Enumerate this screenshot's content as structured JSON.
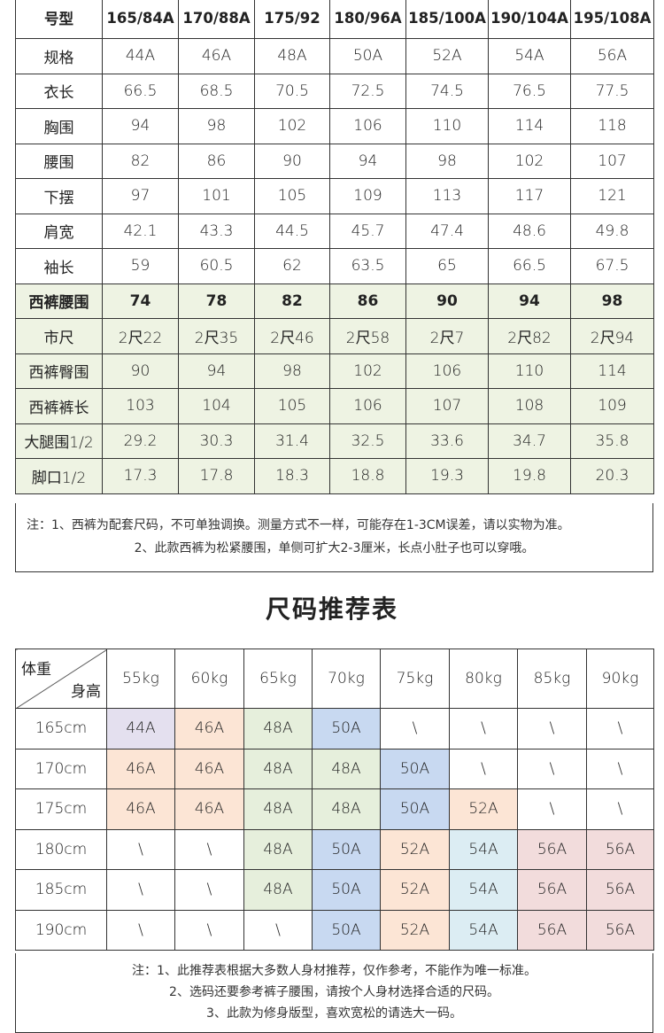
{
  "size_table": {
    "header": [
      "号型",
      "165/84A",
      "170/88A",
      "175/92",
      "180/96A",
      "185/100A",
      "190/104A",
      "195/108A"
    ],
    "rows": [
      {
        "label": "规格",
        "values": [
          "44A",
          "46A",
          "48A",
          "50A",
          "52A",
          "54A",
          "56A"
        ]
      },
      {
        "label": "衣长",
        "values": [
          "66.5",
          "68.5",
          "70.5",
          "72.5",
          "74.5",
          "76.5",
          "77.5"
        ]
      },
      {
        "label": "胸围",
        "values": [
          "94",
          "98",
          "102",
          "106",
          "110",
          "114",
          "118"
        ]
      },
      {
        "label": "腰围",
        "values": [
          "82",
          "86",
          "90",
          "94",
          "98",
          "102",
          "107"
        ]
      },
      {
        "label": "下摆",
        "values": [
          "97",
          "101",
          "105",
          "109",
          "113",
          "117",
          "121"
        ]
      },
      {
        "label": "肩宽",
        "values": [
          "42.1",
          "43.3",
          "44.5",
          "45.7",
          "47.4",
          "48.6",
          "49.8"
        ]
      },
      {
        "label": "袖长",
        "values": [
          "59",
          "60.5",
          "62",
          "63.5",
          "65",
          "66.5",
          "67.5"
        ]
      },
      {
        "label": "西裤腰围",
        "values": [
          "74",
          "78",
          "82",
          "86",
          "90",
          "94",
          "98"
        ],
        "bold": true
      },
      {
        "label": "市尺",
        "values": [
          "2尺22",
          "2尺35",
          "2尺46",
          "2尺58",
          "2尺7",
          "2尺82",
          "2尺94"
        ]
      },
      {
        "label": "西裤臀围",
        "values": [
          "90",
          "94",
          "98",
          "102",
          "106",
          "110",
          "114"
        ]
      },
      {
        "label": "西裤裤长",
        "values": [
          "103",
          "104",
          "105",
          "106",
          "107",
          "108",
          "109"
        ]
      },
      {
        "label": "大腿围1/2",
        "values": [
          "29.2",
          "30.3",
          "31.4",
          "32.5",
          "33.6",
          "34.7",
          "35.8"
        ]
      },
      {
        "label": "脚口1/2",
        "values": [
          "17.3",
          "17.8",
          "18.3",
          "18.8",
          "19.3",
          "19.8",
          "20.3"
        ]
      }
    ],
    "notes": [
      "注：1、西裤为配套尺码，不可单独调换。测量方式不一样，可能存在1-3CM误差，请以实物为准。",
      "2、此款西裤为松紧腰围，单侧可扩大2-3厘米，长点小肚子也可以穿哦。"
    ]
  },
  "recommend": {
    "title": "尺码推荐表",
    "corner_top": "体重",
    "corner_bottom": "身高",
    "weights": [
      "55kg",
      "60kg",
      "65kg",
      "70kg",
      "75kg",
      "80kg",
      "85kg",
      "90kg"
    ],
    "colors": {
      "p": "#e4e0ef",
      "o": "#fce5d5",
      "g": "#e6efdc",
      "b": "#c8d9f1",
      "c": "#dcedf3",
      "r": "#f2dcdc",
      "w": "#ffffff"
    },
    "rows": [
      {
        "height": "165cm",
        "values": [
          "44A",
          "46A",
          "48A",
          "50A",
          "\\",
          "\\",
          "\\",
          "\\"
        ],
        "colors": [
          "p",
          "o",
          "g",
          "b",
          "w",
          "w",
          "w",
          "w"
        ]
      },
      {
        "height": "170cm",
        "values": [
          "46A",
          "46A",
          "48A",
          "48A",
          "50A",
          "\\",
          "\\",
          "\\"
        ],
        "colors": [
          "o",
          "o",
          "g",
          "g",
          "b",
          "w",
          "w",
          "w"
        ]
      },
      {
        "height": "175cm",
        "values": [
          "46A",
          "46A",
          "48A",
          "48A",
          "50A",
          "52A",
          "\\",
          "\\"
        ],
        "colors": [
          "o",
          "o",
          "g",
          "g",
          "b",
          "o",
          "w",
          "w"
        ]
      },
      {
        "height": "180cm",
        "values": [
          "\\",
          "\\",
          "48A",
          "50A",
          "52A",
          "54A",
          "56A",
          "56A"
        ],
        "colors": [
          "w",
          "w",
          "g",
          "b",
          "o",
          "c",
          "r",
          "r"
        ]
      },
      {
        "height": "185cm",
        "values": [
          "\\",
          "\\",
          "48A",
          "50A",
          "52A",
          "54A",
          "56A",
          "56A"
        ],
        "colors": [
          "w",
          "w",
          "g",
          "b",
          "o",
          "c",
          "r",
          "r"
        ]
      },
      {
        "height": "190cm",
        "values": [
          "\\",
          "\\",
          "\\",
          "50A",
          "52A",
          "54A",
          "56A",
          "56A"
        ],
        "colors": [
          "w",
          "w",
          "w",
          "b",
          "o",
          "c",
          "r",
          "r"
        ]
      }
    ],
    "notes": [
      "注：1、此推荐表根据大多数人身材推荐，仅作参考，不能作为唯一标准。",
      "2、选码还要参考裤子腰围，请按个人身材选择合适的尺码。",
      "3、此款为修身版型，喜欢宽松的请选大一码。"
    ]
  }
}
